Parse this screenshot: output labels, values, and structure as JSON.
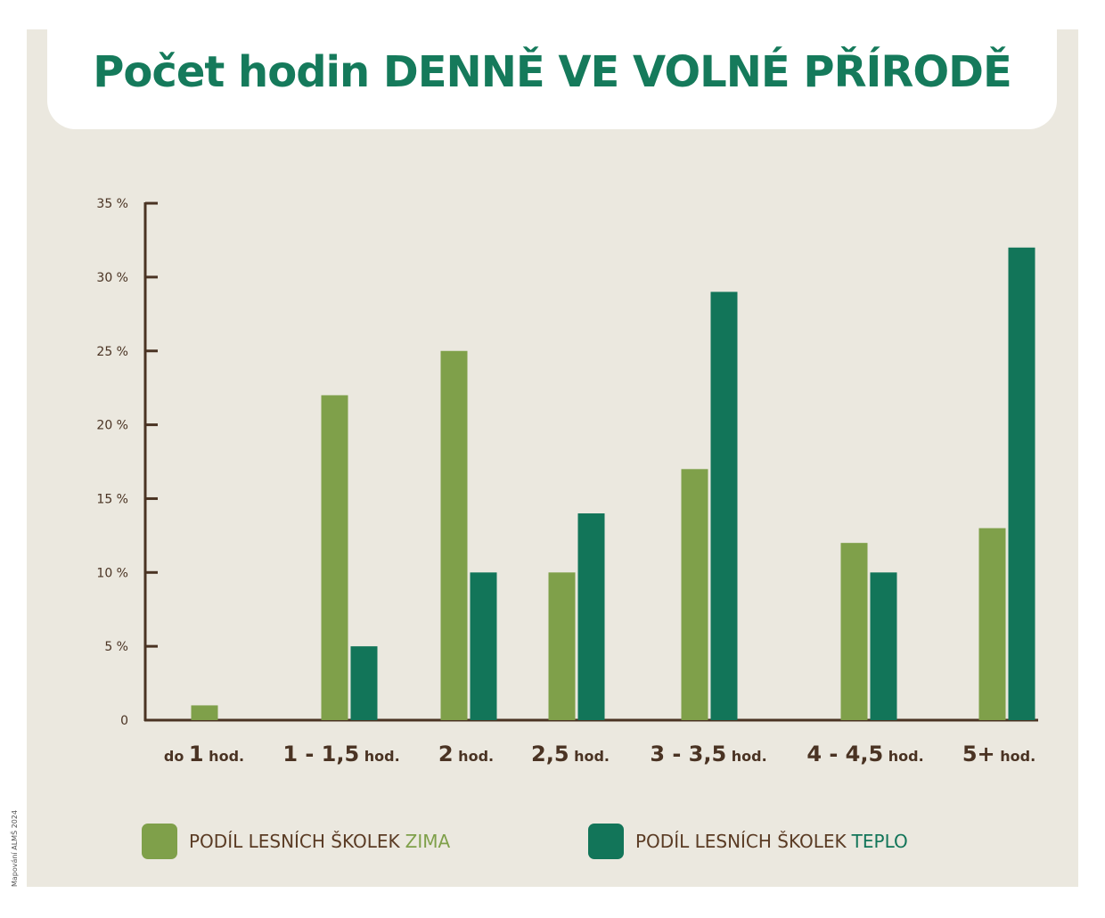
{
  "credit": "Mapování ALMŠ 2024",
  "colors": {
    "zima": "#7fa04a",
    "teplo": "#127559",
    "axis": "#4a3323",
    "title": "#157a5b",
    "background": "#ebe8df"
  },
  "legend": [
    {
      "prefix": "PODÍL LESNÍCH ŠKOLEK",
      "suffix": "ZIMA",
      "color": "#7fa04a"
    },
    {
      "prefix": "PODÍL LESNÍCH ŠKOLEK",
      "suffix": "TEPLO",
      "color": "#127559"
    }
  ],
  "chart_data": {
    "type": "bar",
    "title": "Počet hodin DENNĚ VE VOLNÉ PŘÍRODĚ",
    "title_parts": {
      "normal": "Počet hodin",
      "bold": "DENNĚ VE VOLNÉ PŘÍRODĚ"
    },
    "categories": [
      "do 1 hod.",
      "1 - 1,5 hod.",
      "2 hod.",
      "2,5 hod.",
      "3 - 3,5 hod.",
      "4 - 4,5 hod.",
      "5+ hod."
    ],
    "category_labels": [
      {
        "pre": "do ",
        "big": "1",
        "post": " hod."
      },
      {
        "pre": "",
        "big": "1 - 1,5",
        "post": " hod."
      },
      {
        "pre": "",
        "big": "2",
        "post": " hod."
      },
      {
        "pre": "",
        "big": "2,5",
        "post": " hod."
      },
      {
        "pre": "",
        "big": "3 - 3,5",
        "post": " hod."
      },
      {
        "pre": "",
        "big": "4 - 4,5",
        "post": " hod."
      },
      {
        "pre": "",
        "big": "5+",
        "post": " hod."
      }
    ],
    "series": [
      {
        "name": "PODÍL LESNÍCH ŠKOLEK ZIMA",
        "values": [
          1,
          22,
          25,
          10,
          17,
          12,
          13
        ]
      },
      {
        "name": "PODÍL LESNÍCH ŠKOLEK TEPLO",
        "values": [
          0,
          5,
          10,
          14,
          29,
          10,
          32
        ]
      }
    ],
    "yticks": [
      "0",
      "5 %",
      "10 %",
      "15 %",
      "20 %",
      "25 %",
      "30 %",
      "35 %"
    ],
    "ylim": [
      0,
      35
    ],
    "xlabel": "",
    "ylabel": "",
    "grid": false,
    "legend_position": "bottom"
  }
}
